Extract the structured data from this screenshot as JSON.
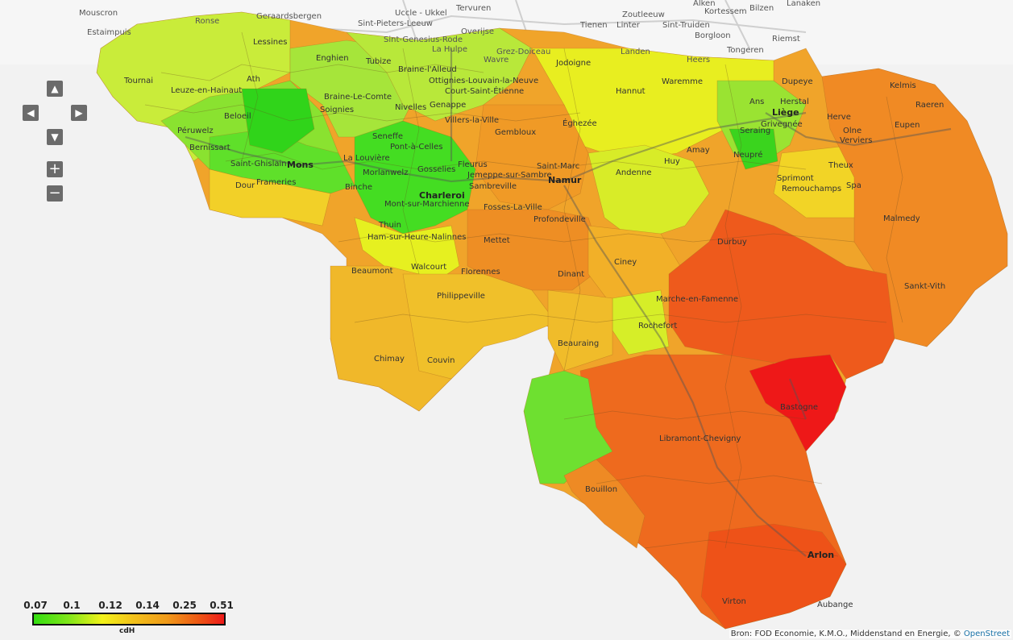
{
  "map": {
    "northern_labels": [
      "Mouscron",
      "Estaimpuis",
      "Ronse",
      "Geraardsbergen",
      "Uccle - Ukkel",
      "Tervuren",
      "Sint-Pieters-Leeuw",
      "Overijse",
      "Sint-Genesius-Rode",
      "La Hulpe",
      "Grez-Doiceau",
      "Wavre",
      "Tienen",
      "Zoutleeuw",
      "Linter",
      "Sint-Truiden",
      "Kortessem",
      "Bilzen",
      "Lanaken",
      "Alken",
      "Borgloon",
      "Riemst",
      "Tongeren",
      "Landen",
      "Heers"
    ],
    "wallonia_labels": [
      "Lessines",
      "Enghien",
      "Tubize",
      "Braine-l'Alleud",
      "Ottignies-Louvain-la-Neuve",
      "Jodoigne",
      "Court-Saint-Étienne",
      "Tournai",
      "Ath",
      "Leuze-en-Hainaut",
      "Braine-Le-Comte",
      "Nivelles",
      "Genappe",
      "Soignies",
      "Beloeil",
      "Péruwelz",
      "Bernissart",
      "Saint-Ghislain",
      "Mons",
      "Seneffe",
      "Pont-à-Celles",
      "La Louvière",
      "Morlanwelz",
      "Gosselies",
      "Fleurus",
      "Charleroi",
      "Binche",
      "Frameries",
      "Dour",
      "Mont-sur-Marchienne",
      "Thuin",
      "Ham-sur-Heure-Nalinnes",
      "Walcourt",
      "Villers-la-Ville",
      "Gembloux",
      "Éghezée",
      "Hannut",
      "Waremme",
      "Ans",
      "Liège",
      "Herstal",
      "Dupeye",
      "Seraing",
      "Grivegnée",
      "Neupré",
      "Amay",
      "Huy",
      "Andenne",
      "Saint-Marc",
      "Namur",
      "Jemeppe-sur-Sambre",
      "Sambreville",
      "Fosses-La-Ville",
      "Profondeville",
      "Mettet",
      "Florennes",
      "Dinant",
      "Ciney",
      "Philippeville",
      "Beaumont",
      "Chimay",
      "Couvin",
      "Beauraing",
      "Rochefort",
      "Marche-en-Famenne",
      "Durbuy",
      "Herve",
      "Olne",
      "Verviers",
      "Theux",
      "Spa",
      "Sprimont",
      "Remouchamps",
      "Malmedy",
      "Eupen",
      "Raeren",
      "Kelmis",
      "Aubange",
      "Arlon",
      "Virton",
      "Bastogne",
      "Libramont-Chevigny",
      "Bouillon",
      "Sankt-Vith"
    ],
    "bold_labels": [
      "Mons",
      "Charleroi",
      "Namur",
      "Liège",
      "Arlon"
    ]
  },
  "controls": {
    "pan_up": "▲",
    "pan_left": "◀",
    "pan_right": "▶",
    "pan_down": "▼",
    "zoom_in": "+",
    "zoom_out": "−"
  },
  "legend": {
    "ticks": [
      "0.07",
      "0.1",
      "0.12",
      "0.14",
      "0.25",
      "0.51"
    ],
    "unit": "cdH",
    "colors": [
      "#33dd11",
      "#7fe61a",
      "#f2f21a",
      "#f2c21a",
      "#f09a1a",
      "#ee5a14",
      "#ee1a1a"
    ]
  },
  "attribution": {
    "text": "Bron: FOD Economie, K.M.O., Middenstand en Energie, © ",
    "link": "OpenStreet"
  }
}
